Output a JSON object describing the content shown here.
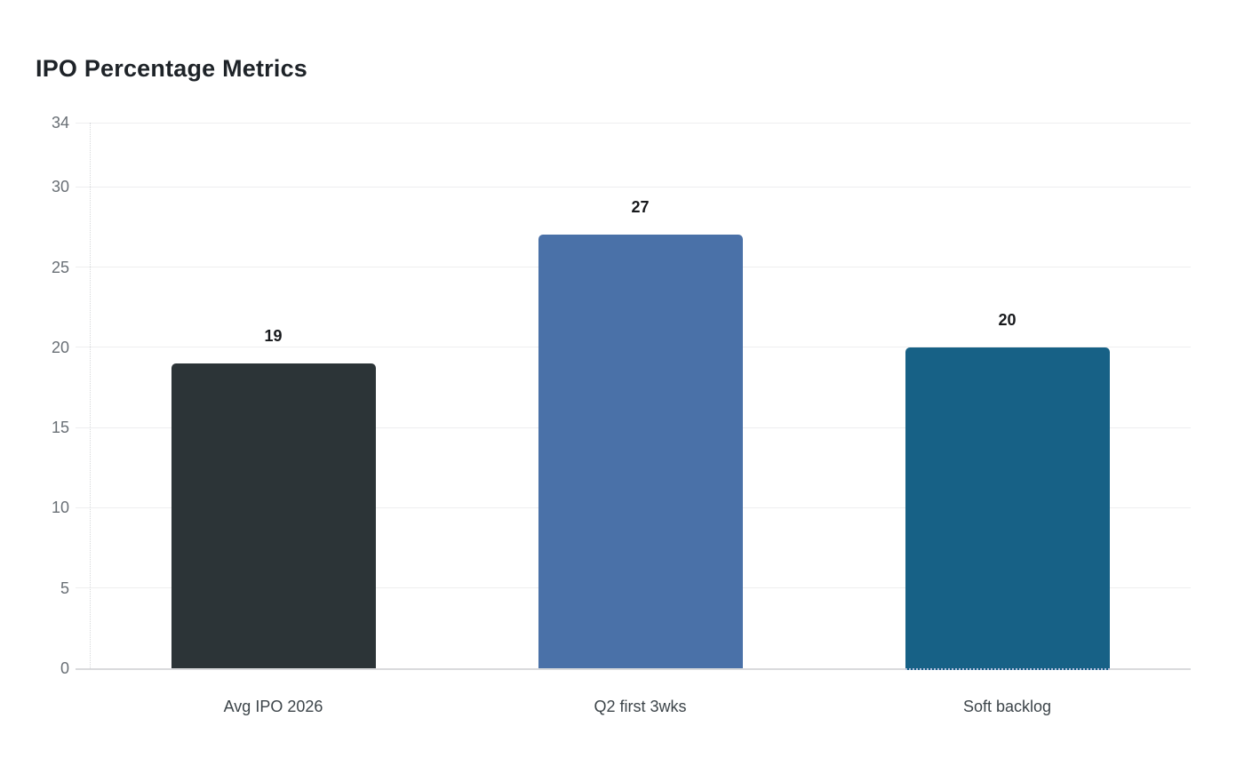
{
  "chart_data": {
    "type": "bar",
    "title": "IPO Percentage Metrics",
    "categories": [
      "Avg IPO 2026",
      "Q2 first 3wks",
      "Soft backlog"
    ],
    "values": [
      19,
      27,
      20
    ],
    "value_labels": [
      "19",
      "27",
      "20"
    ],
    "bar_colors": [
      "#2c3437",
      "#4a71a8",
      "#176186"
    ],
    "xlabel": "",
    "ylabel": "",
    "ylim": [
      0,
      34
    ],
    "yticks": [
      0,
      5,
      10,
      15,
      20,
      25,
      30,
      34
    ],
    "grid": "horizontal-only",
    "legend": "none",
    "background": "#ffffff"
  },
  "style_colors": {
    "gridline": "#eeeeef",
    "baseline": "#d9dadc",
    "tick_label": "#696f75",
    "category_label": "#3c4449",
    "value_label": "#17191c",
    "title": "#1e2328"
  }
}
